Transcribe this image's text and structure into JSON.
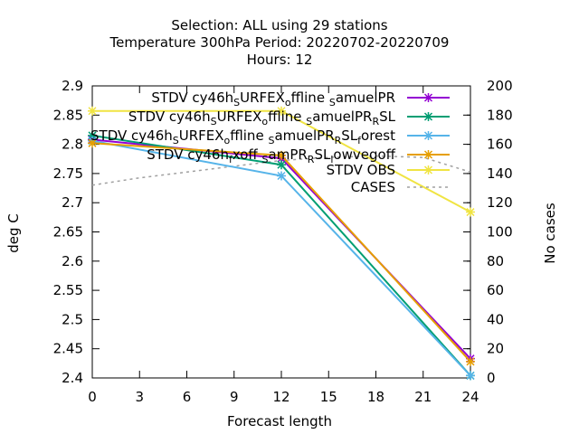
{
  "chart_data": {
    "type": "line",
    "title_lines": [
      "Selection: ALL using    29 stations",
      "Temperature 300hPa   Period: 20220702-20220709",
      "Hours:  12"
    ],
    "xlabel": "Forecast length",
    "ylabel": "deg C",
    "y2label": "No cases",
    "x_ticks": [
      0,
      3,
      6,
      9,
      12,
      15,
      18,
      21,
      24
    ],
    "y_ticks": [
      "2.4",
      "2.45",
      "2.5",
      "2.55",
      "2.6",
      "2.65",
      "2.7",
      "2.75",
      "2.8",
      "2.85",
      "2.9"
    ],
    "y2_ticks": [
      "0",
      "20",
      "40",
      "60",
      "80",
      "100",
      "120",
      "140",
      "160",
      "180",
      "200"
    ],
    "xlim": [
      0,
      24
    ],
    "ylim": [
      2.4,
      2.9
    ],
    "y2lim": [
      0,
      200
    ],
    "grid": false,
    "legend_position": "top-right",
    "series": [
      {
        "legend_parts": [
          [
            "STDV cy46h",
            ""
          ],
          [
            "S",
            "sub"
          ],
          [
            "URFEX",
            ""
          ],
          [
            "o",
            "sub"
          ],
          [
            "ffline ",
            ""
          ],
          [
            "S",
            "sub"
          ],
          [
            "amuelPR",
            ""
          ]
        ],
        "color": "#9400d3",
        "marker": "x",
        "x": [
          0,
          12,
          24
        ],
        "y": [
          2.808,
          2.776,
          2.433
        ]
      },
      {
        "legend_parts": [
          [
            "STDV cy46h",
            ""
          ],
          [
            "S",
            "sub"
          ],
          [
            "URFEX",
            ""
          ],
          [
            "o",
            "sub"
          ],
          [
            "ffline ",
            ""
          ],
          [
            "S",
            "sub"
          ],
          [
            "amuelPR",
            ""
          ],
          [
            "R",
            "sub"
          ],
          [
            "SL",
            ""
          ]
        ],
        "color": "#009e73",
        "marker": "x",
        "x": [
          0,
          12,
          24
        ],
        "y": [
          2.815,
          2.765,
          2.404
        ]
      },
      {
        "legend_parts": [
          [
            "STDV cy46h",
            ""
          ],
          [
            "S",
            "sub"
          ],
          [
            "URFEX",
            ""
          ],
          [
            "o",
            "sub"
          ],
          [
            "ffline ",
            ""
          ],
          [
            "S",
            "sub"
          ],
          [
            "amuelPR",
            ""
          ],
          [
            "R",
            "sub"
          ],
          [
            "SL",
            ""
          ],
          [
            "f",
            "sub"
          ],
          [
            "orest",
            ""
          ]
        ],
        "color": "#56b4e9",
        "marker": "x",
        "x": [
          0,
          12,
          24
        ],
        "y": [
          2.806,
          2.746,
          2.404
        ]
      },
      {
        "legend_parts": [
          [
            "STDV cy46h",
            ""
          ],
          [
            "f",
            "sub"
          ],
          [
            "xoff ",
            ""
          ],
          [
            "S",
            "sub"
          ],
          [
            "amPR",
            ""
          ],
          [
            "R",
            "sub"
          ],
          [
            "SL",
            ""
          ],
          [
            "l",
            "sub"
          ],
          [
            "owvegoff",
            ""
          ]
        ],
        "color": "#e69f00",
        "marker": "x",
        "x": [
          0,
          12,
          24
        ],
        "y": [
          2.802,
          2.781,
          2.428
        ]
      },
      {
        "legend_parts": [
          [
            "STDV OBS",
            ""
          ]
        ],
        "color": "#f0e442",
        "marker": "x",
        "x": [
          0,
          12,
          24
        ],
        "y": [
          2.857,
          2.857,
          2.684
        ]
      },
      {
        "legend_parts": [
          [
            "CASES",
            ""
          ]
        ],
        "color": "#a0a0a0",
        "marker": "none",
        "dashed": true,
        "axis": "y2",
        "x": [
          0,
          3,
          6,
          9,
          12,
          15,
          18,
          21,
          24
        ],
        "y": [
          132,
          137,
          141,
          145,
          149,
          151,
          152,
          151,
          141
        ]
      }
    ]
  }
}
